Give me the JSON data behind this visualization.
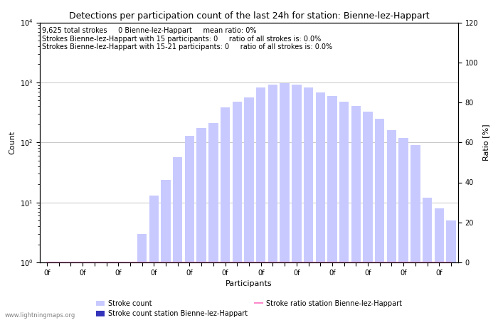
{
  "title": "Detections per participation count of the last 24h for station: Bienne-lez-Happart",
  "xlabel": "Participants",
  "ylabel": "Count",
  "ylabel_right": "Ratio [%]",
  "annotation_lines": [
    "9,625 total strokes     0 Bienne-lez-Happart     mean ratio: 0%",
    "Strokes Bienne-lez-Happart with 15 participants: 0     ratio of all strokes is: 0.0%",
    "Strokes Bienne-lez-Happart with 15-21 participants: 0     ratio of all strokes is: 0.0%"
  ],
  "watermark": "www.lightningmaps.org",
  "bar_color_global": "#c8caff",
  "bar_color_station": "#3333bb",
  "ratio_line_color": "#ff88cc",
  "num_bins": 35,
  "counts": [
    1,
    1,
    1,
    1,
    1,
    1,
    1,
    1,
    3,
    13,
    24,
    57,
    130,
    175,
    210,
    380,
    480,
    560,
    820,
    920,
    980,
    920,
    820,
    680,
    590,
    480,
    400,
    330,
    250,
    160,
    120,
    90,
    12,
    8,
    5
  ],
  "station_counts": [
    0,
    0,
    0,
    0,
    0,
    0,
    0,
    0,
    0,
    0,
    0,
    0,
    0,
    0,
    0,
    0,
    0,
    0,
    0,
    0,
    0,
    0,
    0,
    0,
    0,
    0,
    0,
    0,
    0,
    0,
    0,
    0,
    0,
    0,
    0
  ],
  "ylim_log": [
    1,
    10000
  ],
  "ylim_right": [
    0,
    120
  ],
  "background_color": "#ffffff",
  "grid_color": "#b0b0b0",
  "tick_label": "0f",
  "xtick_step": 3,
  "fig_width": 7.0,
  "fig_height": 4.5,
  "dpi": 100,
  "title_fontsize": 9,
  "annotation_fontsize": 7,
  "axis_label_fontsize": 8,
  "tick_fontsize": 7,
  "legend_fontsize": 7
}
